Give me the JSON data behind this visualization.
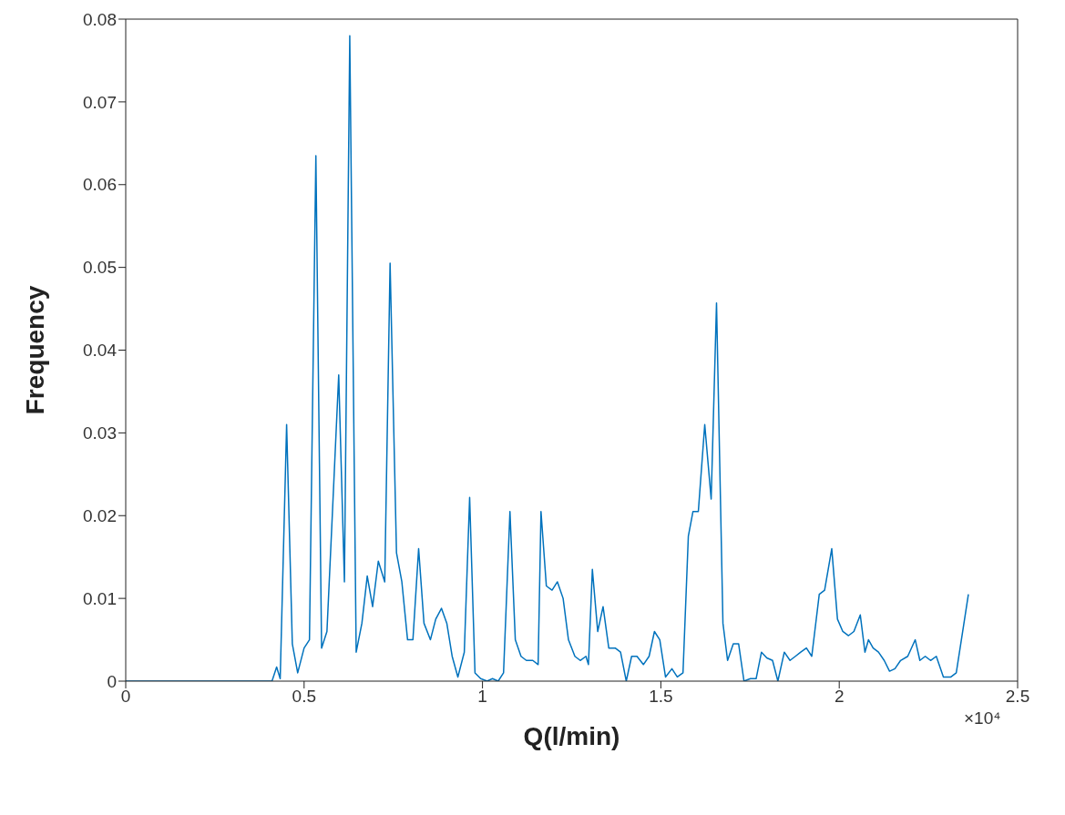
{
  "chart_data": {
    "type": "line",
    "xlabel": "Q(l/min)",
    "ylabel": "Frequency",
    "annotations": [
      "×10⁴"
    ],
    "xlim": [
      0,
      2.5
    ],
    "xticks": [
      0,
      0.5,
      1,
      1.5,
      2,
      2.5
    ],
    "ylim": [
      0,
      0.08
    ],
    "yticks": [
      0,
      0.01,
      0.02,
      0.03,
      0.04,
      0.05,
      0.06,
      0.07,
      0.08
    ],
    "grid": false,
    "legend": false,
    "marker": "none",
    "line_style": "solid",
    "series": [
      {
        "color": "#0072bd",
        "x": [
          0,
          0.41,
          0.423,
          0.433,
          0.451,
          0.467,
          0.482,
          0.5,
          0.515,
          0.533,
          0.549,
          0.564,
          0.579,
          0.597,
          0.613,
          0.628,
          0.646,
          0.662,
          0.677,
          0.692,
          0.708,
          0.726,
          0.741,
          0.759,
          0.774,
          0.79,
          0.805,
          0.821,
          0.836,
          0.854,
          0.869,
          0.885,
          0.9,
          0.915,
          0.931,
          0.949,
          0.964,
          0.979,
          0.995,
          1.013,
          1.028,
          1.044,
          1.059,
          1.077,
          1.092,
          1.108,
          1.123,
          1.141,
          1.156,
          1.164,
          1.179,
          1.195,
          1.21,
          1.226,
          1.241,
          1.259,
          1.274,
          1.29,
          1.297,
          1.308,
          1.323,
          1.338,
          1.354,
          1.372,
          1.387,
          1.403,
          1.418,
          1.433,
          1.451,
          1.467,
          1.482,
          1.497,
          1.513,
          1.531,
          1.546,
          1.562,
          1.577,
          1.59,
          1.605,
          1.623,
          1.641,
          1.656,
          1.674,
          1.687,
          1.703,
          1.718,
          1.733,
          1.751,
          1.767,
          1.782,
          1.797,
          1.813,
          1.828,
          1.846,
          1.862,
          1.877,
          1.892,
          1.908,
          1.923,
          1.944,
          1.959,
          1.979,
          1.995,
          2.01,
          2.026,
          2.041,
          2.059,
          2.072,
          2.082,
          2.095,
          2.11,
          2.126,
          2.141,
          2.156,
          2.172,
          2.192,
          2.213,
          2.226,
          2.241,
          2.256,
          2.272,
          2.292,
          2.313,
          2.328,
          2.346,
          2.362
        ],
        "values": [
          0,
          0,
          0.0017,
          0.0003,
          0.031,
          0.0045,
          0.001,
          0.004,
          0.005,
          0.0635,
          0.004,
          0.006,
          0.02,
          0.037,
          0.012,
          0.078,
          0.0035,
          0.007,
          0.0127,
          0.009,
          0.0145,
          0.012,
          0.0505,
          0.0155,
          0.012,
          0.005,
          0.005,
          0.016,
          0.007,
          0.005,
          0.0075,
          0.0088,
          0.007,
          0.003,
          0.0005,
          0.0035,
          0.0222,
          0.001,
          0.0003,
          0,
          0.0003,
          0,
          0.001,
          0.0205,
          0.005,
          0.003,
          0.0025,
          0.0025,
          0.002,
          0.0205,
          0.0115,
          0.011,
          0.012,
          0.01,
          0.005,
          0.003,
          0.0025,
          0.003,
          0.002,
          0.0135,
          0.006,
          0.009,
          0.004,
          0.004,
          0.0035,
          0,
          0.003,
          0.003,
          0.002,
          0.003,
          0.006,
          0.005,
          0.0005,
          0.0015,
          0.0005,
          0.001,
          0.0175,
          0.0205,
          0.0205,
          0.031,
          0.022,
          0.0457,
          0.007,
          0.0025,
          0.0045,
          0.0045,
          0,
          0.0003,
          0.0003,
          0.0035,
          0.0028,
          0.0025,
          0,
          0.0035,
          0.0025,
          0.003,
          0.0035,
          0.004,
          0.003,
          0.0105,
          0.011,
          0.016,
          0.0075,
          0.006,
          0.0055,
          0.006,
          0.008,
          0.0035,
          0.005,
          0.004,
          0.0035,
          0.0025,
          0.0012,
          0.0015,
          0.0025,
          0.003,
          0.005,
          0.0025,
          0.003,
          0.0025,
          0.003,
          0.0005,
          0.0005,
          0.001,
          0.006,
          0.0105
        ]
      }
    ]
  }
}
